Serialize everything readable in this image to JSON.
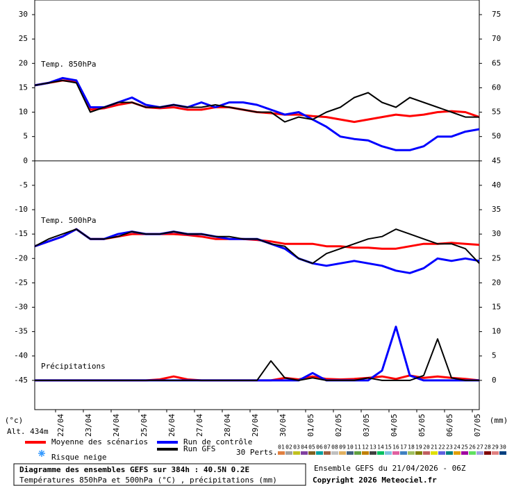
{
  "chart_data": {
    "type": "line",
    "y_unit": "(°c)",
    "y2_unit": "(mm)",
    "altitude": "Alt. 434m",
    "x": [
      0,
      12,
      24,
      36,
      48,
      60,
      72,
      84,
      96,
      108,
      120,
      132,
      144,
      156,
      168,
      180,
      192,
      204,
      216,
      228,
      240,
      252,
      264,
      276,
      288,
      300,
      312,
      324,
      336,
      348,
      360,
      372,
      384
    ],
    "xlim": [
      0,
      384
    ],
    "xticks": [
      {
        "value": 18,
        "label": "22/04"
      },
      {
        "value": 42,
        "label": "23/04"
      },
      {
        "value": 66,
        "label": "24/04"
      },
      {
        "value": 90,
        "label": "25/04"
      },
      {
        "value": 114,
        "label": "26/04"
      },
      {
        "value": 138,
        "label": "27/04"
      },
      {
        "value": 162,
        "label": "28/04"
      },
      {
        "value": 186,
        "label": "29/04"
      },
      {
        "value": 210,
        "label": "30/04"
      },
      {
        "value": 234,
        "label": "01/05"
      },
      {
        "value": 258,
        "label": "02/05"
      },
      {
        "value": 282,
        "label": "03/05"
      },
      {
        "value": 306,
        "label": "04/05"
      },
      {
        "value": 330,
        "label": "05/05"
      },
      {
        "value": 354,
        "label": "06/05"
      },
      {
        "value": 378,
        "label": "07/05"
      }
    ],
    "ylim": [
      -51,
      33
    ],
    "yticks": [
      -45,
      -40,
      -35,
      -30,
      -25,
      -20,
      -15,
      -10,
      -5,
      0,
      5,
      10,
      15,
      20,
      25,
      30
    ],
    "y2lim": [
      -6,
      78
    ],
    "y2ticks": [
      0,
      5,
      10,
      15,
      20,
      25,
      30,
      35,
      40,
      45,
      50,
      55,
      60,
      65,
      70,
      75
    ],
    "layers": [
      {
        "key": "t850",
        "label": "Temp. 850hPa",
        "axis": "y"
      },
      {
        "key": "t500",
        "label": "Temp. 500hPa",
        "axis": "y"
      },
      {
        "key": "precip",
        "label": "Précipitations",
        "axis": "y2"
      }
    ],
    "series": [
      {
        "name": "Moyenne des scénarios",
        "color": "#ff0000",
        "values": {
          "t850": [
            15.5,
            16,
            16.5,
            16.2,
            10.5,
            10.8,
            11.5,
            12,
            11,
            10.8,
            11,
            10.5,
            10.5,
            11,
            11,
            10.5,
            10,
            9.8,
            9.5,
            9.5,
            9.2,
            9,
            8.5,
            8,
            8.5,
            9,
            9.5,
            9.2,
            9.5,
            10,
            10.2,
            10,
            9
          ],
          "t500": [
            -17.5,
            -16.5,
            -15.5,
            -14,
            -16,
            -16,
            -15.5,
            -15,
            -15,
            -15,
            -15,
            -15.2,
            -15.5,
            -16,
            -16,
            -16,
            -16.2,
            -16.5,
            -17,
            -17,
            -17,
            -17.5,
            -17.5,
            -17.8,
            -17.8,
            -18,
            -18,
            -17.5,
            -17,
            -17,
            -16.8,
            -17,
            -17.2
          ],
          "precip": [
            0,
            0,
            0,
            0,
            0,
            0,
            0,
            0,
            0,
            0.2,
            0.8,
            0.2,
            0,
            0,
            0,
            0,
            0,
            0,
            0.5,
            0.2,
            0.8,
            0.3,
            0.2,
            0.3,
            0.5,
            0.8,
            0.3,
            1,
            0.5,
            0.8,
            0.5,
            0.3,
            0
          ]
        }
      },
      {
        "name": "Run de contrôle",
        "color": "#0000ff",
        "values": {
          "t850": [
            15.5,
            16,
            17,
            16.5,
            11,
            11,
            12,
            13,
            11.5,
            11,
            11.5,
            11,
            12,
            11,
            12,
            12,
            11.5,
            10.5,
            9.5,
            10,
            8.5,
            7,
            5,
            4.5,
            4.2,
            3,
            2.2,
            2.2,
            3,
            5,
            5,
            6,
            6.5
          ],
          "t500": [
            -17.5,
            -16.5,
            -15.5,
            -14,
            -16,
            -16,
            -15,
            -14.5,
            -15,
            -15,
            -14.5,
            -15,
            -15,
            -15.5,
            -16,
            -16,
            -16,
            -17,
            -18,
            -20,
            -21,
            -21.5,
            -21,
            -20.5,
            -21,
            -21.5,
            -22.5,
            -23,
            -22,
            -20,
            -20.5,
            -20,
            -20.5
          ],
          "precip": [
            0,
            0,
            0,
            0,
            0,
            0,
            0,
            0,
            0,
            0,
            0,
            0,
            0,
            0,
            0,
            0,
            0,
            0,
            0,
            0,
            1.5,
            0,
            0,
            0,
            0,
            2,
            11,
            1,
            0,
            0,
            0,
            0,
            0
          ]
        }
      },
      {
        "name": "Run GFS",
        "color": "#000000",
        "values": {
          "t850": [
            15.5,
            16,
            16.5,
            16,
            10,
            11,
            12,
            12,
            11,
            11,
            11.5,
            11,
            11,
            11.5,
            11,
            10.5,
            10,
            10,
            8,
            9,
            8.5,
            10,
            11,
            13,
            14,
            12,
            11,
            13,
            12,
            11,
            10,
            9,
            9
          ],
          "t500": [
            -17.5,
            -16,
            -15,
            -14,
            -16,
            -16,
            -15.5,
            -14.5,
            -15,
            -15,
            -14.5,
            -15,
            -15,
            -15.5,
            -15.5,
            -16,
            -16,
            -17,
            -17.5,
            -20,
            -21,
            -19,
            -18,
            -17,
            -16,
            -15.5,
            -14,
            -15,
            -16,
            -17,
            -17,
            -18,
            -21
          ],
          "precip": [
            0,
            0,
            0,
            0,
            0,
            0,
            0,
            0,
            0,
            0,
            0,
            0,
            0,
            0,
            0,
            0,
            0,
            4,
            0.5,
            0,
            0.5,
            0,
            0,
            0,
            0.5,
            0,
            0,
            0,
            1,
            8.5,
            0.5,
            0,
            0
          ]
        }
      }
    ],
    "snow_label": "Risque neige",
    "perturbations_label": "30 Perts.",
    "perturbations": [
      {
        "name": "01",
        "color": "#e08040"
      },
      {
        "name": "02",
        "color": "#a0a0a0"
      },
      {
        "name": "03",
        "color": "#c0c020"
      },
      {
        "name": "04",
        "color": "#8040a0"
      },
      {
        "name": "05",
        "color": "#806020"
      },
      {
        "name": "06",
        "color": "#00a0a0"
      },
      {
        "name": "07",
        "color": "#a06040"
      },
      {
        "name": "08",
        "color": "#c0c0c0"
      },
      {
        "name": "09",
        "color": "#e0b060"
      },
      {
        "name": "10",
        "color": "#406080"
      },
      {
        "name": "11",
        "color": "#60a040"
      },
      {
        "name": "12",
        "color": "#c08000"
      },
      {
        "name": "13",
        "color": "#404040"
      },
      {
        "name": "14",
        "color": "#00c060"
      },
      {
        "name": "15",
        "color": "#80c0e0"
      },
      {
        "name": "16",
        "color": "#e060a0"
      },
      {
        "name": "17",
        "color": "#4080c0"
      },
      {
        "name": "18",
        "color": "#a0c060"
      },
      {
        "name": "19",
        "color": "#808000"
      },
      {
        "name": "20",
        "color": "#c06060"
      },
      {
        "name": "21",
        "color": "#e0e000"
      },
      {
        "name": "22",
        "color": "#6060e0"
      },
      {
        "name": "23",
        "color": "#008080"
      },
      {
        "name": "24",
        "color": "#e0a000"
      },
      {
        "name": "25",
        "color": "#a000a0"
      },
      {
        "name": "26",
        "color": "#60e060"
      },
      {
        "name": "27",
        "color": "#a0a0e0"
      },
      {
        "name": "28",
        "color": "#800000"
      },
      {
        "name": "29",
        "color": "#e08080"
      },
      {
        "name": "30",
        "color": "#004080"
      }
    ],
    "footer_title": "Diagramme des ensembles GEFS sur 384h : 40.5N 0.2E",
    "footer_subtitle": "Températures 850hPa et 500hPa (°C) , précipitations (mm)",
    "run_info": "Ensemble GEFS du 21/04/2026 - 06Z",
    "copyright": "Copyright 2026 Meteociel.fr"
  }
}
